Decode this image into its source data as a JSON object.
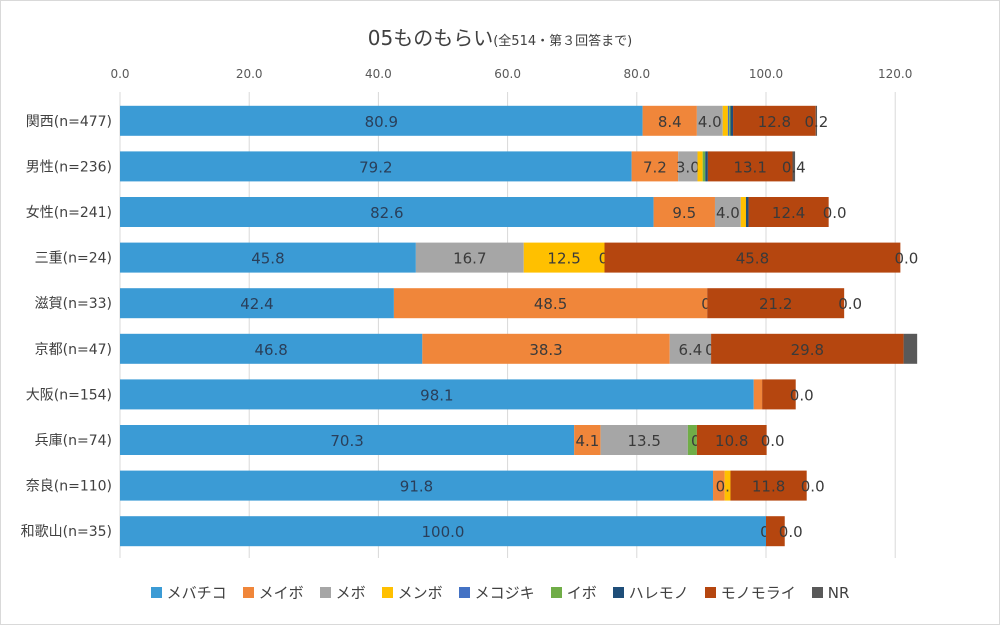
{
  "chart_data": {
    "type": "bar",
    "orientation": "horizontal",
    "stacked": true,
    "title": "05ものもらい",
    "subtitle": "(全514・第３回答まで)",
    "xlim": [
      0,
      120
    ],
    "x_ticks": [
      "0.0",
      "20.0",
      "40.0",
      "60.0",
      "80.0",
      "100.0",
      "120.0"
    ],
    "grid": true,
    "legend_position": "bottom",
    "categories": [
      "関西(n=477)",
      "男性(n=236)",
      "女性(n=241)",
      "三重(n=24)",
      "滋賀(n=33)",
      "京都(n=47)",
      "大阪(n=154)",
      "兵庫(n=74)",
      "奈良(n=110)",
      "和歌山(n=35)"
    ],
    "series": [
      {
        "name": "メバチコ",
        "color": "#3b9bd5",
        "values": [
          80.9,
          79.2,
          82.6,
          45.8,
          42.4,
          46.8,
          98.1,
          70.3,
          91.8,
          100.0
        ],
        "labels": [
          "80.9",
          "79.2",
          "82.6",
          "45.8",
          "42.4",
          "46.8",
          "98.1",
          "70.3",
          "91.8",
          "100.0"
        ]
      },
      {
        "name": "メイボ",
        "color": "#f0863a",
        "values": [
          8.4,
          7.2,
          9.5,
          0.0,
          48.5,
          38.3,
          1.3,
          4.1,
          1.8,
          0.0
        ],
        "labels": [
          "8.4",
          "7.2",
          "9.5",
          "",
          "48.5",
          "38.3",
          "",
          "4.1",
          "",
          ""
        ]
      },
      {
        "name": "メボ",
        "color": "#a6a6a6",
        "values": [
          4.0,
          3.0,
          4.0,
          16.7,
          0.0,
          6.4,
          0.0,
          13.5,
          0.0,
          0.0
        ],
        "labels": [
          "4.0",
          "3.0",
          "4.0",
          "16.7",
          "",
          "6.4",
          "",
          "13.5",
          "",
          ""
        ]
      },
      {
        "name": "メンボ",
        "color": "#ffc000",
        "values": [
          0.8,
          0.8,
          0.8,
          12.5,
          0.0,
          0.0,
          0.0,
          0.0,
          0.9,
          0.0
        ],
        "labels": [
          "",
          "",
          "",
          "12.5",
          "",
          "",
          "",
          "",
          "0.9",
          ""
        ]
      },
      {
        "name": "メコジキ",
        "color": "#4472c4",
        "values": [
          0.2,
          0.0,
          0.0,
          0.0,
          0.0,
          0.0,
          0.0,
          0.0,
          0.0,
          0.0
        ],
        "labels": [
          "",
          "",
          "",
          "",
          "",
          "",
          "",
          "",
          "",
          ""
        ]
      },
      {
        "name": "イボ",
        "color": "#70ad47",
        "values": [
          0.2,
          0.4,
          0.0,
          0.0,
          0.0,
          0.0,
          0.0,
          1.4,
          0.0,
          0.0
        ],
        "labels": [
          "",
          "",
          "",
          "",
          "",
          "",
          "",
          "",
          "",
          ""
        ]
      },
      {
        "name": "ハレモノ",
        "color": "#1f4e79",
        "values": [
          0.4,
          0.4,
          0.4,
          0.0,
          0.0,
          0.0,
          0.0,
          0.0,
          0.0,
          0.0
        ],
        "labels": [
          "",
          "",
          "",
          "0.0",
          "0.0",
          "0.0",
          "",
          "0.0",
          "",
          "0.0"
        ]
      },
      {
        "name": "モノモライ",
        "color": "#b5460f",
        "values": [
          12.8,
          13.1,
          12.4,
          45.8,
          21.2,
          29.8,
          5.2,
          10.8,
          11.8,
          2.9
        ],
        "labels": [
          "12.8",
          "13.1",
          "12.4",
          "45.8",
          "21.2",
          "29.8",
          "",
          "10.8",
          "11.8",
          ""
        ]
      },
      {
        "name": "NR",
        "color": "#595959",
        "values": [
          0.2,
          0.4,
          0.0,
          0.0,
          0.0,
          2.1,
          0.0,
          0.0,
          0.0,
          0.0
        ],
        "labels": [
          "0.2",
          "0.4",
          "0.0",
          "0.0",
          "0.0",
          "",
          "0.0",
          "0.0",
          "0.0",
          "0.0"
        ]
      }
    ]
  }
}
